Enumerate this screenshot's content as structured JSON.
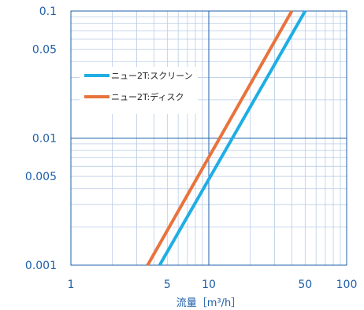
{
  "chart_data": {
    "type": "line",
    "xlabel": "流量［m³/h］",
    "ylabel": "",
    "x_scale": "log",
    "y_scale": "log",
    "xlim": [
      1,
      100
    ],
    "ylim": [
      0.001,
      0.1
    ],
    "x_ticks": [
      {
        "value": 1,
        "label": "1"
      },
      {
        "value": 5,
        "label": "5"
      },
      {
        "value": 10,
        "label": "10"
      },
      {
        "value": 50,
        "label": "50"
      },
      {
        "value": 100,
        "label": "100"
      }
    ],
    "y_ticks": [
      {
        "value": 0.1,
        "label": "0.1"
      },
      {
        "value": 0.05,
        "label": "0.05"
      },
      {
        "value": 0.01,
        "label": "0.01"
      },
      {
        "value": 0.005,
        "label": "0.005"
      },
      {
        "value": 0.001,
        "label": "0.001"
      }
    ],
    "grid": true,
    "legend_position": "upper-left",
    "series": [
      {
        "name": "ニュー2T:スクリーン",
        "color": "#1eaee4",
        "x": [
          4.4,
          50
        ],
        "y": [
          0.001,
          0.1
        ]
      },
      {
        "name": "ニュー2T:ディスク",
        "color": "#e8733c",
        "x": [
          3.6,
          40
        ],
        "y": [
          0.001,
          0.1
        ]
      }
    ]
  }
}
